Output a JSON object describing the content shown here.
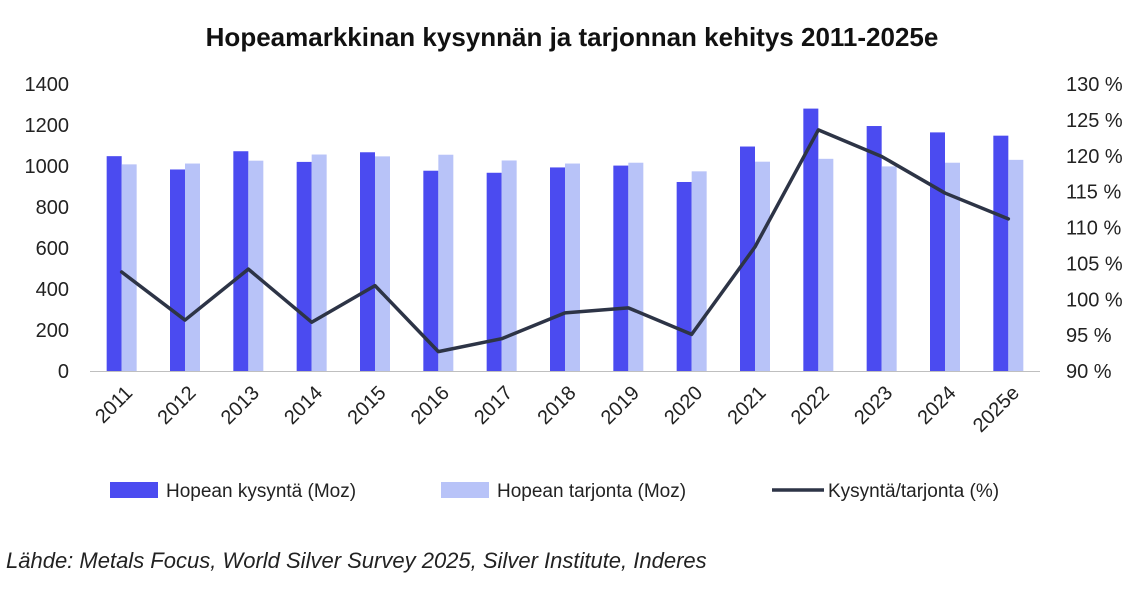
{
  "chart_data": {
    "type": "bar",
    "title": "Hopeamarkkinan kysynnän ja tarjonnan kehitys 2011-2025e",
    "categories": [
      "2011",
      "2012",
      "2013",
      "2014",
      "2015",
      "2016",
      "2017",
      "2018",
      "2019",
      "2020",
      "2021",
      "2022",
      "2023",
      "2024",
      "2025e"
    ],
    "series": [
      {
        "name": "Hopean kysyntä (Moz)",
        "kind": "bar",
        "axis": "left",
        "color": "#4b4bf0",
        "values": [
          1048,
          983,
          1072,
          1020,
          1067,
          977,
          967,
          993,
          1002,
          922,
          1095,
          1280,
          1195,
          1164,
          1148
        ]
      },
      {
        "name": "Hopean tarjonta (Moz)",
        "kind": "bar",
        "axis": "left",
        "color": "#b8c3f8",
        "values": [
          1008,
          1012,
          1026,
          1056,
          1047,
          1055,
          1027,
          1012,
          1016,
          974,
          1021,
          1035,
          998,
          1016,
          1030
        ]
      },
      {
        "name": "Kysyntä/tarjonta (%)",
        "kind": "line",
        "axis": "right",
        "color": "#2d3446",
        "values": [
          103.8,
          97.1,
          104.2,
          96.8,
          101.9,
          92.7,
          94.5,
          98.1,
          98.8,
          95.1,
          107.3,
          123.6,
          119.9,
          114.8,
          111.2
        ]
      }
    ],
    "left_axis": {
      "min": 0,
      "max": 1400,
      "ticks": [
        0,
        200,
        400,
        600,
        800,
        1000,
        1200,
        1400
      ],
      "tick_labels": [
        "0",
        "200",
        "400",
        "600",
        "800",
        "1000",
        "1200",
        "1400"
      ]
    },
    "right_axis": {
      "min": 90,
      "max": 130,
      "ticks": [
        90,
        95,
        100,
        105,
        110,
        115,
        120,
        125,
        130
      ],
      "tick_labels": [
        "90 %",
        "95 %",
        "100 %",
        "105 %",
        "110 %",
        "115 %",
        "120 %",
        "125 %",
        "130 %"
      ]
    },
    "grid": false,
    "legend_position": "bottom",
    "source": "Lähde: Metals Focus, World Silver Survey 2025, Silver Institute, Inderes"
  }
}
